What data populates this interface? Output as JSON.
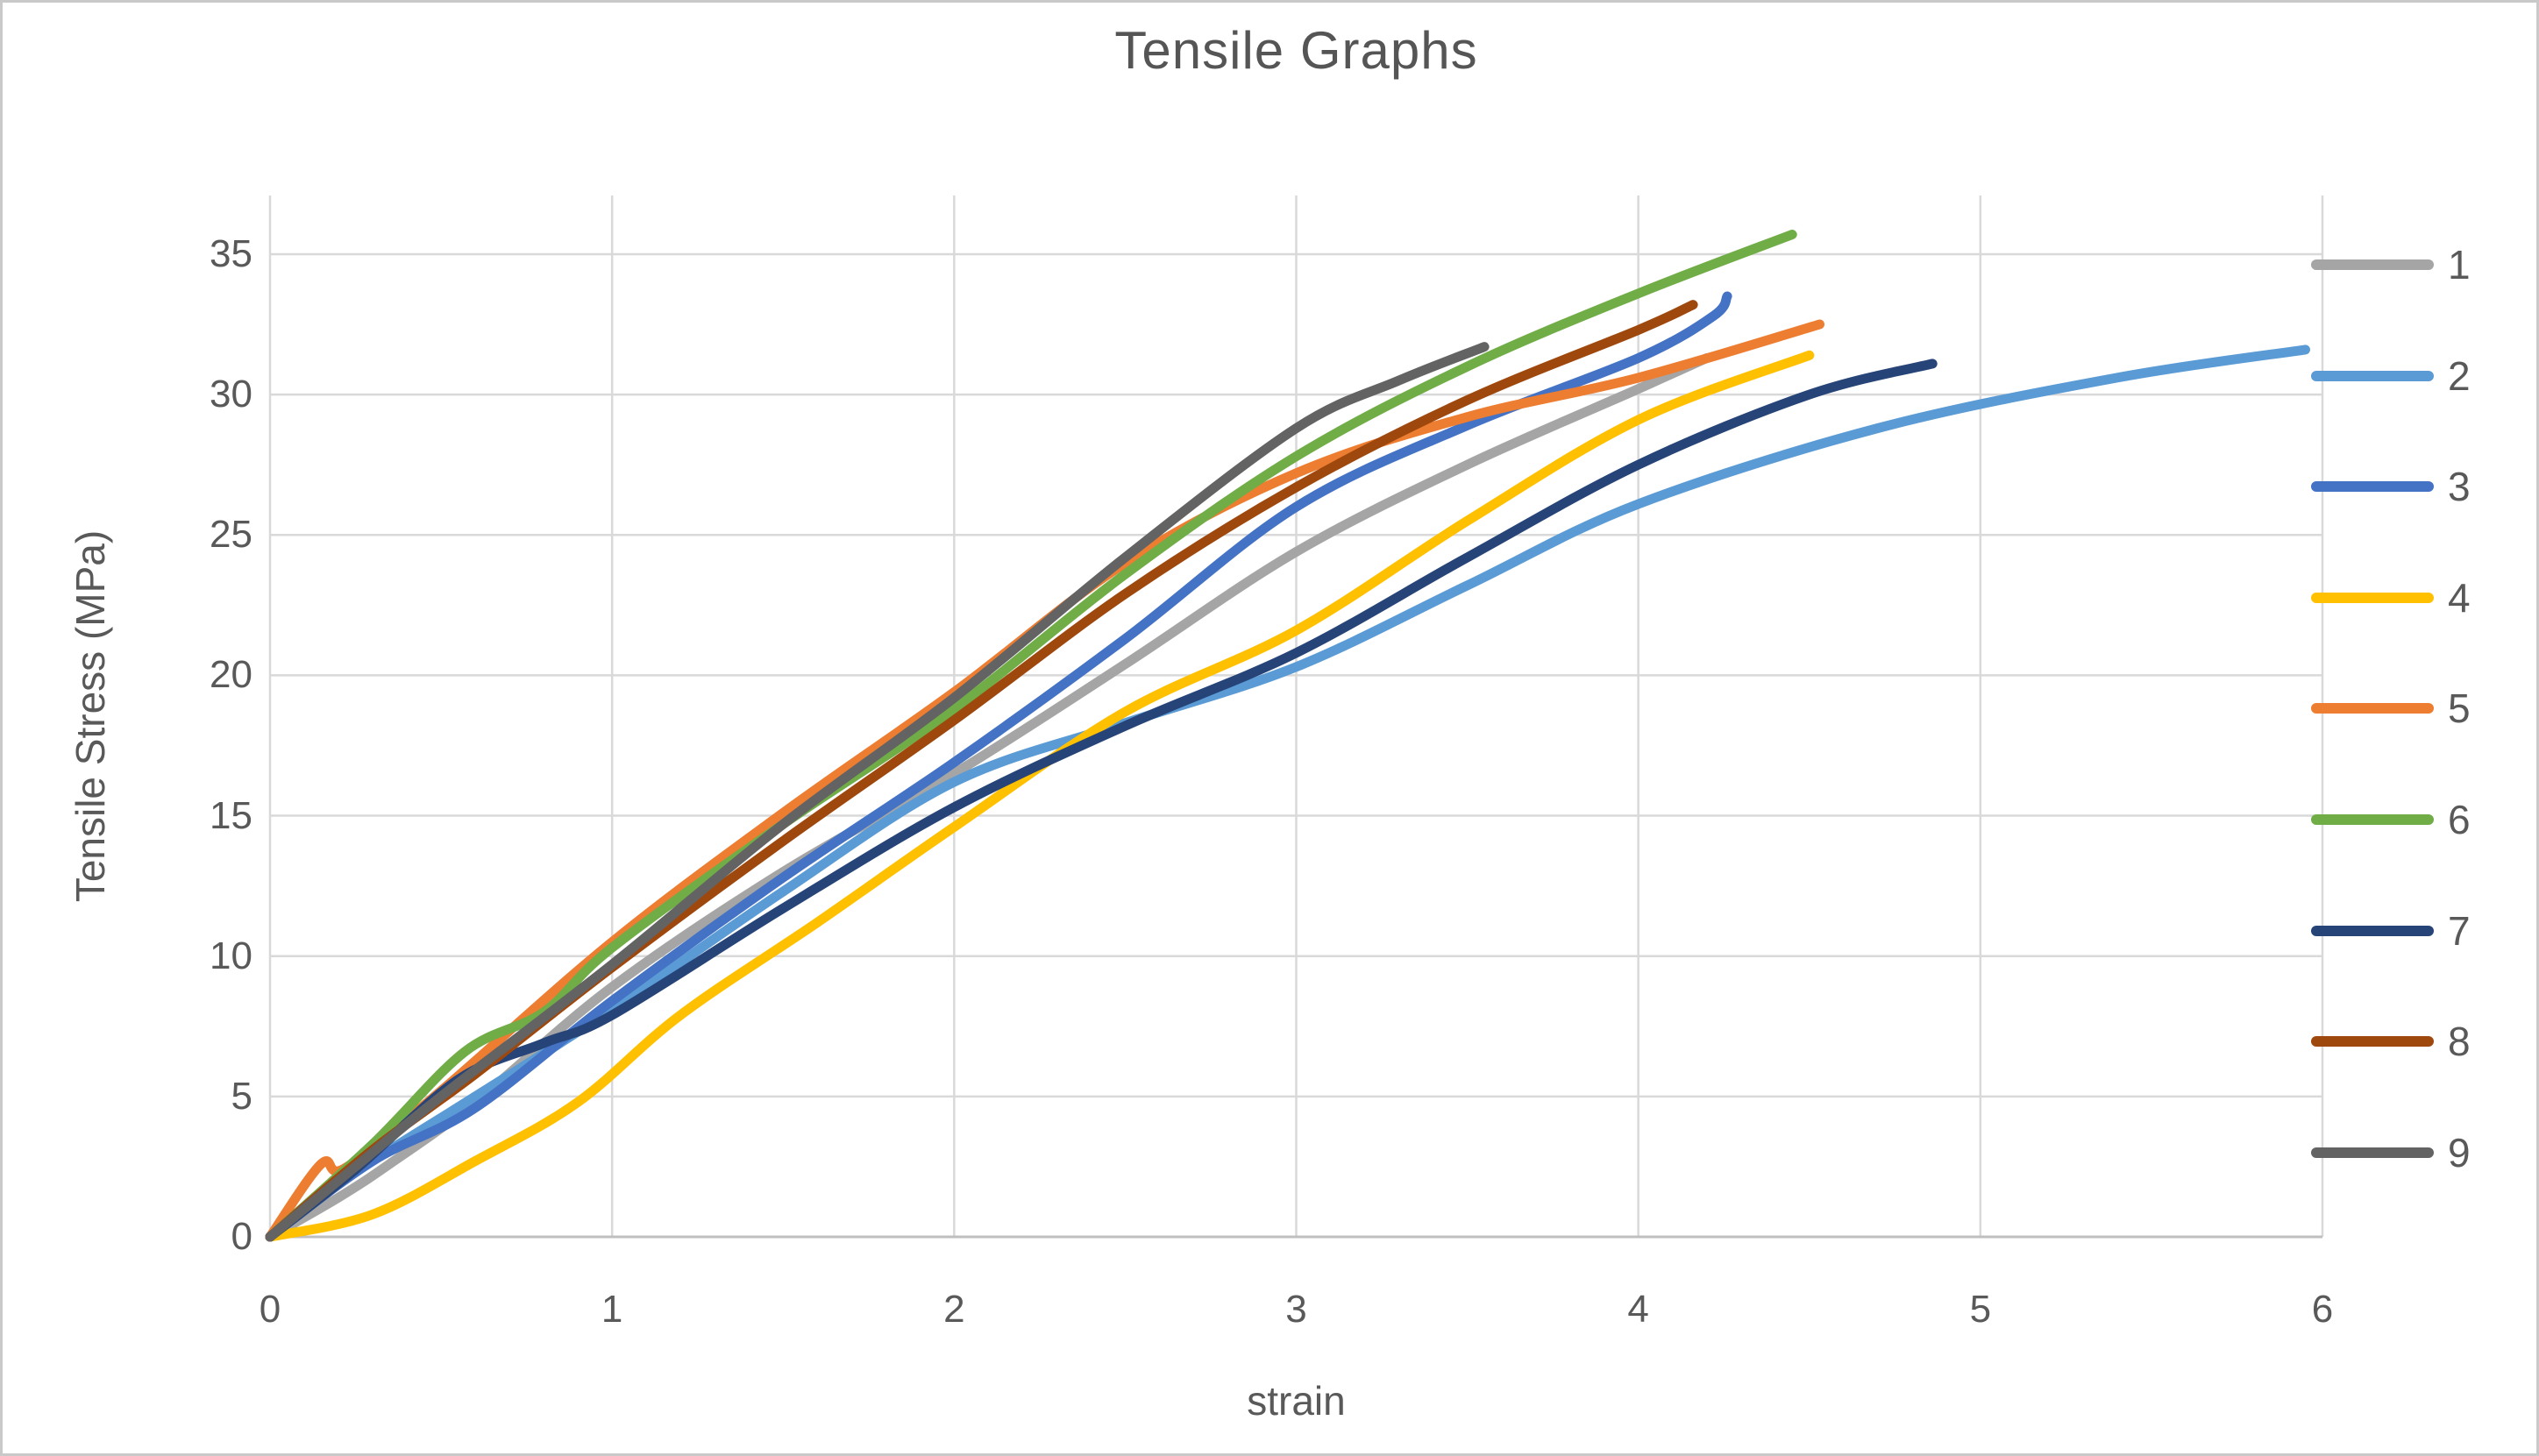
{
  "chart": {
    "title": "Tensile Graphs",
    "x_axis": {
      "label": "strain",
      "ticks": [
        "0",
        "1",
        "2",
        "3",
        "4",
        "5",
        "6"
      ]
    },
    "y_axis": {
      "label": "Tensile Stress (MPa)",
      "ticks": [
        "0",
        "5",
        "10",
        "15",
        "20",
        "25",
        "30",
        "35"
      ]
    }
  },
  "chart_data": {
    "type": "line",
    "title": "Tensile Graphs",
    "xlabel": "strain",
    "ylabel": "Tensile Stress (MPa)",
    "xlim": [
      0,
      6
    ],
    "ylim": [
      0,
      35
    ],
    "x_tick_step": 1,
    "y_tick_step": 5,
    "grid": true,
    "legend_position": "right",
    "gridline_color": "#d9d9d9",
    "axis_line_color": "#bfbfbf",
    "text_color": "#595959",
    "series": [
      {
        "name": "1",
        "color": "#A5A5A5",
        "points": [
          [
            0,
            0
          ],
          [
            0.2,
            1.4
          ],
          [
            0.35,
            2.6
          ],
          [
            0.6,
            4.8
          ],
          [
            1,
            8.9
          ],
          [
            1.5,
            13.0
          ],
          [
            2,
            16.5
          ],
          [
            2.5,
            20.4
          ],
          [
            3,
            24.4
          ],
          [
            3.5,
            27.5
          ],
          [
            4,
            30.2
          ],
          [
            4.2,
            31.3
          ]
        ]
      },
      {
        "name": "2",
        "color": "#5B9BD5",
        "points": [
          [
            0,
            0
          ],
          [
            0.25,
            2.3
          ],
          [
            0.6,
            5.0
          ],
          [
            1,
            8.1
          ],
          [
            1.5,
            12.3
          ],
          [
            2,
            16.2
          ],
          [
            2.5,
            18.3
          ],
          [
            3,
            20.3
          ],
          [
            3.5,
            23.2
          ],
          [
            4,
            26.1
          ],
          [
            4.7,
            28.8
          ],
          [
            5.4,
            30.6
          ],
          [
            5.95,
            31.6
          ]
        ]
      },
      {
        "name": "3",
        "color": "#4472C4",
        "points": [
          [
            0,
            0
          ],
          [
            0.3,
            2.7
          ],
          [
            0.6,
            4.6
          ],
          [
            1,
            8.4
          ],
          [
            1.5,
            12.8
          ],
          [
            2,
            16.9
          ],
          [
            2.5,
            21.3
          ],
          [
            3,
            26.0
          ],
          [
            3.5,
            28.9
          ],
          [
            4,
            31.3
          ],
          [
            4.22,
            32.8
          ],
          [
            4.26,
            33.5
          ]
        ]
      },
      {
        "name": "4",
        "color": "#FFC000",
        "points": [
          [
            0,
            0
          ],
          [
            0.3,
            0.8
          ],
          [
            0.6,
            2.7
          ],
          [
            0.9,
            4.8
          ],
          [
            1.2,
            7.9
          ],
          [
            1.6,
            11.2
          ],
          [
            2,
            14.6
          ],
          [
            2.5,
            18.7
          ],
          [
            3,
            21.6
          ],
          [
            3.5,
            25.5
          ],
          [
            4,
            29.1
          ],
          [
            4.5,
            31.4
          ]
        ]
      },
      {
        "name": "5",
        "color": "#ED7D31",
        "points": [
          [
            0,
            0
          ],
          [
            0.15,
            2.6
          ],
          [
            0.22,
            2.45
          ],
          [
            0.5,
            5.2
          ],
          [
            1,
            10.5
          ],
          [
            1.5,
            15.1
          ],
          [
            2,
            19.4
          ],
          [
            2.5,
            24.0
          ],
          [
            3,
            27.2
          ],
          [
            3.5,
            29.2
          ],
          [
            4,
            30.6
          ],
          [
            4.53,
            32.5
          ]
        ]
      },
      {
        "name": "6",
        "color": "#70AD47",
        "points": [
          [
            0,
            0
          ],
          [
            0.3,
            3.3
          ],
          [
            0.57,
            6.6
          ],
          [
            0.8,
            8.0
          ],
          [
            1,
            10.3
          ],
          [
            1.5,
            14.7
          ],
          [
            2,
            18.8
          ],
          [
            2.5,
            23.6
          ],
          [
            3,
            27.8
          ],
          [
            3.5,
            31.0
          ],
          [
            4,
            33.6
          ],
          [
            4.45,
            35.7
          ]
        ]
      },
      {
        "name": "7",
        "color": "#264478",
        "points": [
          [
            0,
            0
          ],
          [
            0.25,
            2.4
          ],
          [
            0.55,
            5.6
          ],
          [
            0.8,
            6.9
          ],
          [
            1,
            7.9
          ],
          [
            1.5,
            11.7
          ],
          [
            2,
            15.3
          ],
          [
            2.5,
            18.2
          ],
          [
            3,
            20.8
          ],
          [
            3.5,
            24.2
          ],
          [
            4,
            27.5
          ],
          [
            4.5,
            30.0
          ],
          [
            4.86,
            31.1
          ]
        ]
      },
      {
        "name": "8",
        "color": "#9E480E",
        "points": [
          [
            0,
            0
          ],
          [
            0.3,
            3.1
          ],
          [
            0.6,
            5.8
          ],
          [
            1,
            9.6
          ],
          [
            1.5,
            14.1
          ],
          [
            2,
            18.4
          ],
          [
            2.5,
            22.9
          ],
          [
            3,
            26.7
          ],
          [
            3.5,
            29.8
          ],
          [
            4,
            32.3
          ],
          [
            4.16,
            33.2
          ]
        ]
      },
      {
        "name": "9",
        "color": "#636363",
        "points": [
          [
            0,
            0
          ],
          [
            0.25,
            2.5
          ],
          [
            0.5,
            5.0
          ],
          [
            1,
            9.7
          ],
          [
            1.5,
            14.7
          ],
          [
            2,
            19.2
          ],
          [
            2.5,
            24.2
          ],
          [
            3,
            28.8
          ],
          [
            3.3,
            30.5
          ],
          [
            3.55,
            31.7
          ]
        ]
      }
    ]
  }
}
